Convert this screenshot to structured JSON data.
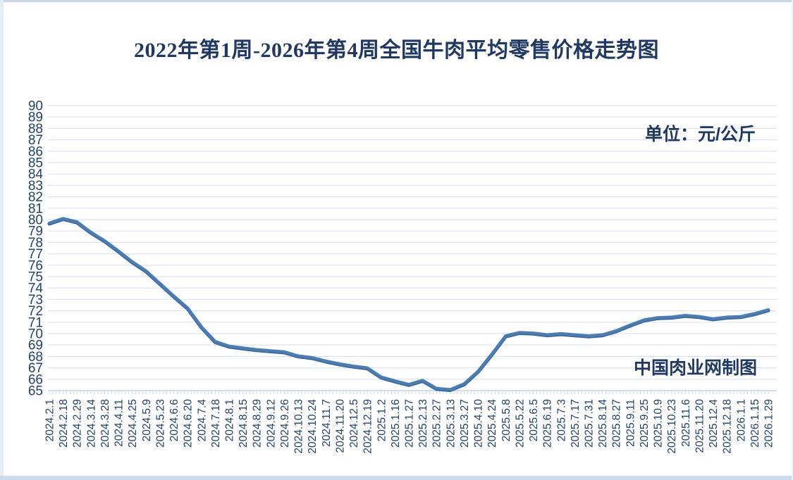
{
  "header": {
    "title": "2022年第1周-2026年第4周全国牛肉平均零售价格走势图"
  },
  "annotations": {
    "unit_label": "单位：元/公斤",
    "watermark": "中国肉业网制图"
  },
  "colors": {
    "title_text": "#1f3864",
    "axis_text": "#24426b",
    "line": "#4a7cb5",
    "line_shade": "#3a659c",
    "gridline": "#d9e3f1",
    "axis_line": "#c6d5e8",
    "frame_edge": "#ccd9ec",
    "background": "#ffffff"
  },
  "chart_data": {
    "type": "line",
    "title": "2022年第1周-2026年第4周全国牛肉平均零售价格走势图",
    "unit": "元/公斤",
    "xlabel": "",
    "ylabel": "",
    "ylim": [
      65,
      90
    ],
    "ytick_step": 1,
    "grid": true,
    "legend_position": "none",
    "minor_xticks_per_label": 4,
    "categories": [
      "2024.2.1",
      "2024.2.18",
      "2024.2.29",
      "2024.3.14",
      "2024.3.28",
      "2024.4.11",
      "2024.4.25",
      "2024.5.9",
      "2024.5.23",
      "2024.6.6",
      "2024.6.20",
      "2024.7.4",
      "2024.7.18",
      "2024.8.1",
      "2024.8.15",
      "2024.8.29",
      "2024.9.12",
      "2024.9.26",
      "2024.10.13",
      "2024.10.24",
      "2024.11.7",
      "2024.11.20",
      "2024.12.5",
      "2024.12.19",
      "2025.1.2",
      "2025.1.16",
      "2025.1.27",
      "2025.2.13",
      "2025.2.27",
      "2025.3.13",
      "2025.3.27",
      "2025.4.10",
      "2025.4.24",
      "2025.5.8",
      "2025.5.22",
      "2025.6.5",
      "2025.6.19",
      "2025.7.3",
      "2025.7.17",
      "2025.7.31",
      "2025.8.14",
      "2025.8.27",
      "2025.9.11",
      "2025.9.25",
      "2025.10.9",
      "2025.10.23",
      "2025.11.6",
      "2025.11.20",
      "2025.12.4",
      "2025.12.18",
      "2026.1.1",
      "2026.1.15",
      "2026.1.29"
    ],
    "values": [
      79.7,
      80.1,
      79.8,
      78.9,
      78.15,
      77.25,
      76.3,
      75.5,
      74.4,
      73.3,
      72.25,
      70.6,
      69.3,
      68.9,
      68.75,
      68.6,
      68.5,
      68.4,
      68.05,
      67.9,
      67.6,
      67.35,
      67.15,
      67.0,
      66.2,
      65.85,
      65.55,
      65.9,
      65.2,
      65.1,
      65.6,
      66.7,
      68.2,
      69.8,
      70.1,
      70.05,
      69.9,
      70.0,
      69.9,
      69.8,
      69.9,
      70.25,
      70.75,
      71.2,
      71.4,
      71.45,
      71.6,
      71.5,
      71.3,
      71.45,
      71.5,
      71.75,
      72.1
    ]
  }
}
